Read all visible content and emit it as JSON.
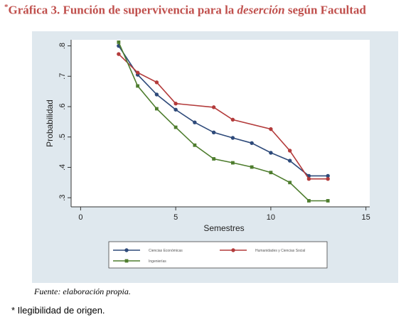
{
  "header": {
    "star": "*",
    "title_pre": "Gráfica 3. Función de supervivencia para la ",
    "title_em": "deserción",
    "title_post": " según Facultad"
  },
  "footer": {
    "source": "Fuente: elaboración propia.",
    "note": "* Ilegibilidad de origen."
  },
  "chart_data": {
    "type": "line",
    "title": "",
    "xlabel": "Semestres",
    "ylabel": "Probabilidad",
    "xlim": [
      -0.5,
      15.2
    ],
    "ylim": [
      0.27,
      0.82
    ],
    "xticks": [
      0,
      5,
      10,
      15
    ],
    "xtick_labels": [
      "0",
      "5",
      "10",
      "15"
    ],
    "yticks": [
      0.3,
      0.4,
      0.5,
      0.6,
      0.7,
      0.8
    ],
    "ytick_labels": [
      ".3",
      ".4",
      ".5",
      ".6",
      ".7",
      ".8"
    ],
    "grid": false,
    "legend_placement": "bottom",
    "series": [
      {
        "name": "Ciencias Económicas",
        "color": "#2e4a7a",
        "marker": "circle",
        "x": [
          2,
          3,
          4,
          5,
          6,
          7,
          8,
          9,
          10,
          11,
          12,
          13
        ],
        "y": [
          0.8,
          0.705,
          0.64,
          0.59,
          0.548,
          0.515,
          0.497,
          0.48,
          0.448,
          0.422,
          0.372,
          0.372
        ]
      },
      {
        "name": "Humanidades y Ciencias Social",
        "color": "#b33b3b",
        "marker": "circle",
        "x": [
          2,
          3,
          4,
          5,
          7,
          8,
          10,
          11,
          12,
          13
        ],
        "y": [
          0.773,
          0.712,
          0.68,
          0.61,
          0.598,
          0.557,
          0.526,
          0.455,
          0.362,
          0.362
        ]
      },
      {
        "name": "Ingenierías",
        "color": "#4e7d2e",
        "marker": "square",
        "x": [
          2,
          3,
          4,
          5,
          6,
          7,
          8,
          9,
          10,
          11,
          12,
          13
        ],
        "y": [
          0.812,
          0.668,
          0.593,
          0.532,
          0.473,
          0.428,
          0.415,
          0.401,
          0.383,
          0.35,
          0.29,
          0.29
        ]
      }
    ]
  }
}
